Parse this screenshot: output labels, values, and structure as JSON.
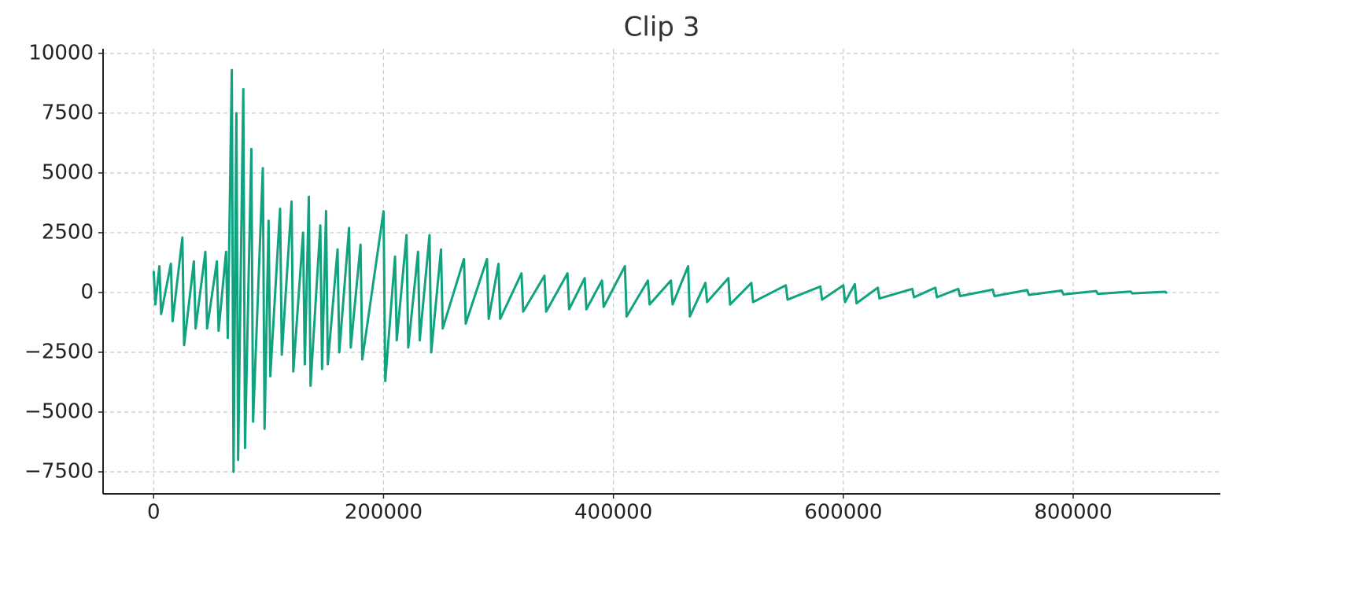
{
  "chart_data": {
    "type": "line",
    "title": "Clip 3",
    "x": [
      0,
      1500,
      5000,
      6500,
      15000,
      16500,
      25000,
      26500,
      35000,
      36500,
      45000,
      46500,
      55000,
      56500,
      63000,
      64500,
      68000,
      69500,
      72000,
      73500,
      78000,
      79500,
      85000,
      86500,
      95000,
      96500,
      100000,
      101500,
      110000,
      111500,
      120000,
      121500,
      130000,
      131500,
      135000,
      136500,
      145000,
      146500,
      150000,
      151500,
      160000,
      161500,
      170000,
      171500,
      180000,
      181500,
      200000,
      201500,
      210000,
      211500,
      220000,
      221500,
      230000,
      231500,
      240000,
      241500,
      250000,
      251500,
      270000,
      271500,
      290000,
      291500,
      300000,
      301500,
      320000,
      321500,
      340000,
      341500,
      360000,
      361500,
      375000,
      376500,
      390000,
      391500,
      410000,
      411500,
      430000,
      431500,
      450000,
      451500,
      465000,
      466500,
      480000,
      481500,
      500000,
      501500,
      520000,
      521500,
      550000,
      551500,
      580000,
      581500,
      600000,
      601500,
      610000,
      611500,
      630000,
      631500,
      660000,
      661500,
      680000,
      681500,
      700000,
      701500,
      730000,
      731500,
      760000,
      761500,
      790000,
      791500,
      820000,
      821500,
      850000,
      851500,
      880000,
      881500
    ],
    "series": [
      {
        "color": "#11a37f",
        "values": [
          900,
          -500,
          1100,
          -900,
          1200,
          -1200,
          2300,
          -2200,
          1300,
          -1500,
          1700,
          -1500,
          1300,
          -1600,
          1700,
          -1900,
          9300,
          -7500,
          7500,
          -7000,
          8500,
          -6500,
          6000,
          -5400,
          5200,
          -5700,
          3000,
          -3500,
          3500,
          -2600,
          3800,
          -3300,
          2500,
          -3000,
          4000,
          -3900,
          2800,
          -3200,
          3400,
          -3000,
          1800,
          -2500,
          2700,
          -2300,
          2000,
          -2800,
          3400,
          -3700,
          1500,
          -2000,
          2400,
          -2300,
          1700,
          -2000,
          2400,
          -2500,
          1800,
          -1500,
          1400,
          -1300,
          1400,
          -1100,
          1200,
          -1100,
          800,
          -800,
          700,
          -800,
          800,
          -700,
          600,
          -700,
          500,
          -600,
          1100,
          -1000,
          500,
          -500,
          500,
          -500,
          1100,
          -1000,
          400,
          -400,
          600,
          -500,
          400,
          -400,
          300,
          -300,
          250,
          -300,
          300,
          -400,
          350,
          -450,
          200,
          -250,
          150,
          -200,
          200,
          -200,
          150,
          -150,
          120,
          -150,
          100,
          -100,
          80,
          -80,
          60,
          -60,
          40,
          -40,
          30,
          -30
        ]
      }
    ],
    "xlim": [
      -44000,
      928000
    ],
    "xticks": [
      0,
      200000,
      400000,
      600000,
      800000
    ],
    "ylim": [
      -8420,
      10850
    ],
    "yticks": [
      {
        "value": -7500,
        "label": "−7500"
      },
      {
        "value": -5000,
        "label": "−5000"
      },
      {
        "value": -2500,
        "label": "−2500"
      },
      0,
      2500,
      5000,
      7500,
      10000
    ],
    "grid": true
  }
}
